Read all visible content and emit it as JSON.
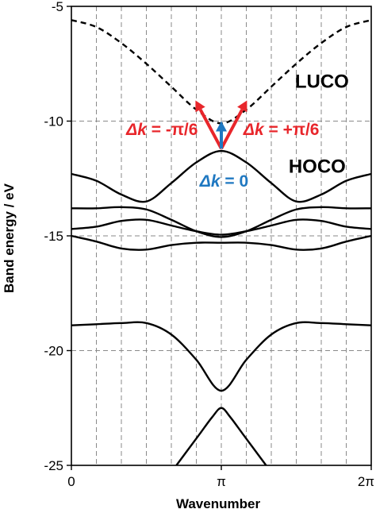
{
  "chart_data": {
    "type": "line",
    "title": "",
    "xlabel": "Wavenumber",
    "ylabel": "Band energy / eV",
    "xlim": [
      0,
      6.2832
    ],
    "ylim": [
      -25,
      -5
    ],
    "xticks": [
      {
        "value": 0,
        "label": "0"
      },
      {
        "value": 3.1416,
        "label": "π"
      },
      {
        "value": 6.2832,
        "label": "2π"
      }
    ],
    "yticks": [
      {
        "value": -5,
        "label": "-5"
      },
      {
        "value": -10,
        "label": "-10"
      },
      {
        "value": -15,
        "label": "-15"
      },
      {
        "value": -20,
        "label": "-20"
      },
      {
        "value": -25,
        "label": "-25"
      }
    ],
    "grid": {
      "vertical_dashed_at": [
        0.5236,
        1.0472,
        1.5708,
        2.0944,
        2.618,
        3.1416,
        3.6652,
        4.1888,
        4.7124,
        5.236,
        5.7596
      ],
      "horizontal_dashed_at": [
        -10,
        -15,
        -20
      ]
    },
    "band_labels": [
      {
        "text": "LUCO",
        "x": 5.25,
        "y": -8.55
      },
      {
        "text": "HOCO",
        "x": 5.15,
        "y": -12.25
      }
    ],
    "annotations": [
      {
        "symbol": "Δk",
        "rest": " = -π/6",
        "color": "#e8262b",
        "x": 1.9,
        "y": -10.6
      },
      {
        "symbol": "Δk",
        "rest": " = +π/6",
        "color": "#e8262b",
        "x": 4.4,
        "y": -10.6
      },
      {
        "symbol": "Δk",
        "rest": " = 0",
        "color": "#1f78c1",
        "x": 3.2,
        "y": -12.85
      }
    ],
    "arrows": [
      {
        "color": "#e8262b",
        "from": [
          3.1416,
          -11.2
        ],
        "to": [
          2.6,
          -9.1
        ]
      },
      {
        "color": "#e8262b",
        "from": [
          3.1416,
          -11.2
        ],
        "to": [
          3.68,
          -9.1
        ]
      },
      {
        "color": "#1f78c1",
        "from": [
          3.1416,
          -11.2
        ],
        "to": [
          3.1416,
          -10.0
        ]
      }
    ],
    "series": [
      {
        "style": "dashed",
        "x": [
          0,
          0.524,
          1.047,
          1.571,
          2.094,
          2.618,
          3.142,
          3.665,
          4.189,
          4.712,
          5.236,
          5.76,
          6.283
        ],
        "y": [
          -5.6,
          -5.9,
          -6.6,
          -7.5,
          -8.5,
          -9.5,
          -10.1,
          -9.5,
          -8.5,
          -7.5,
          -6.6,
          -5.9,
          -5.6
        ]
      },
      {
        "style": "solid",
        "x": [
          0,
          0.524,
          1.047,
          1.571,
          2.094,
          2.618,
          3.142,
          3.665,
          4.189,
          4.712,
          5.236,
          5.76,
          6.283
        ],
        "y": [
          -12.3,
          -12.6,
          -13.2,
          -13.5,
          -12.7,
          -11.8,
          -11.3,
          -11.8,
          -12.7,
          -13.5,
          -13.2,
          -12.6,
          -12.3
        ]
      },
      {
        "style": "solid",
        "x": [
          0,
          0.524,
          1.047,
          1.571,
          2.094,
          2.618,
          3.142,
          3.665,
          4.189,
          4.712,
          5.236,
          5.76,
          6.283
        ],
        "y": [
          -13.8,
          -13.8,
          -13.75,
          -13.85,
          -14.3,
          -14.8,
          -15.05,
          -14.8,
          -14.3,
          -13.85,
          -13.75,
          -13.8,
          -13.8
        ]
      },
      {
        "style": "solid",
        "x": [
          0,
          0.524,
          1.047,
          1.571,
          2.094,
          2.618,
          3.142,
          3.665,
          4.189,
          4.712,
          5.236,
          5.76,
          6.283
        ],
        "y": [
          -14.7,
          -14.6,
          -14.35,
          -14.3,
          -14.55,
          -14.8,
          -14.95,
          -14.8,
          -14.55,
          -14.3,
          -14.35,
          -14.6,
          -14.7
        ]
      },
      {
        "style": "solid",
        "x": [
          0,
          0.524,
          1.047,
          1.571,
          2.094,
          2.618,
          3.142,
          3.665,
          4.189,
          4.712,
          5.236,
          5.76,
          6.283
        ],
        "y": [
          -15.0,
          -15.25,
          -15.55,
          -15.6,
          -15.4,
          -15.3,
          -15.3,
          -15.3,
          -15.4,
          -15.6,
          -15.55,
          -15.25,
          -15.0
        ]
      },
      {
        "style": "solid",
        "x": [
          0,
          0.524,
          1.047,
          1.571,
          2.094,
          2.618,
          3.142,
          3.665,
          4.189,
          4.712,
          5.236,
          5.76,
          6.283
        ],
        "y": [
          -18.9,
          -18.85,
          -18.8,
          -18.8,
          -19.3,
          -20.4,
          -21.75,
          -20.4,
          -19.3,
          -18.8,
          -18.8,
          -18.85,
          -18.9
        ]
      },
      {
        "style": "solid",
        "x": [
          2.2,
          2.45,
          2.7,
          2.95,
          3.142,
          3.33,
          3.58,
          3.83,
          4.08
        ],
        "y": [
          -25.0,
          -24.3,
          -23.6,
          -22.9,
          -22.5,
          -22.9,
          -23.6,
          -24.3,
          -25.0
        ]
      }
    ]
  }
}
